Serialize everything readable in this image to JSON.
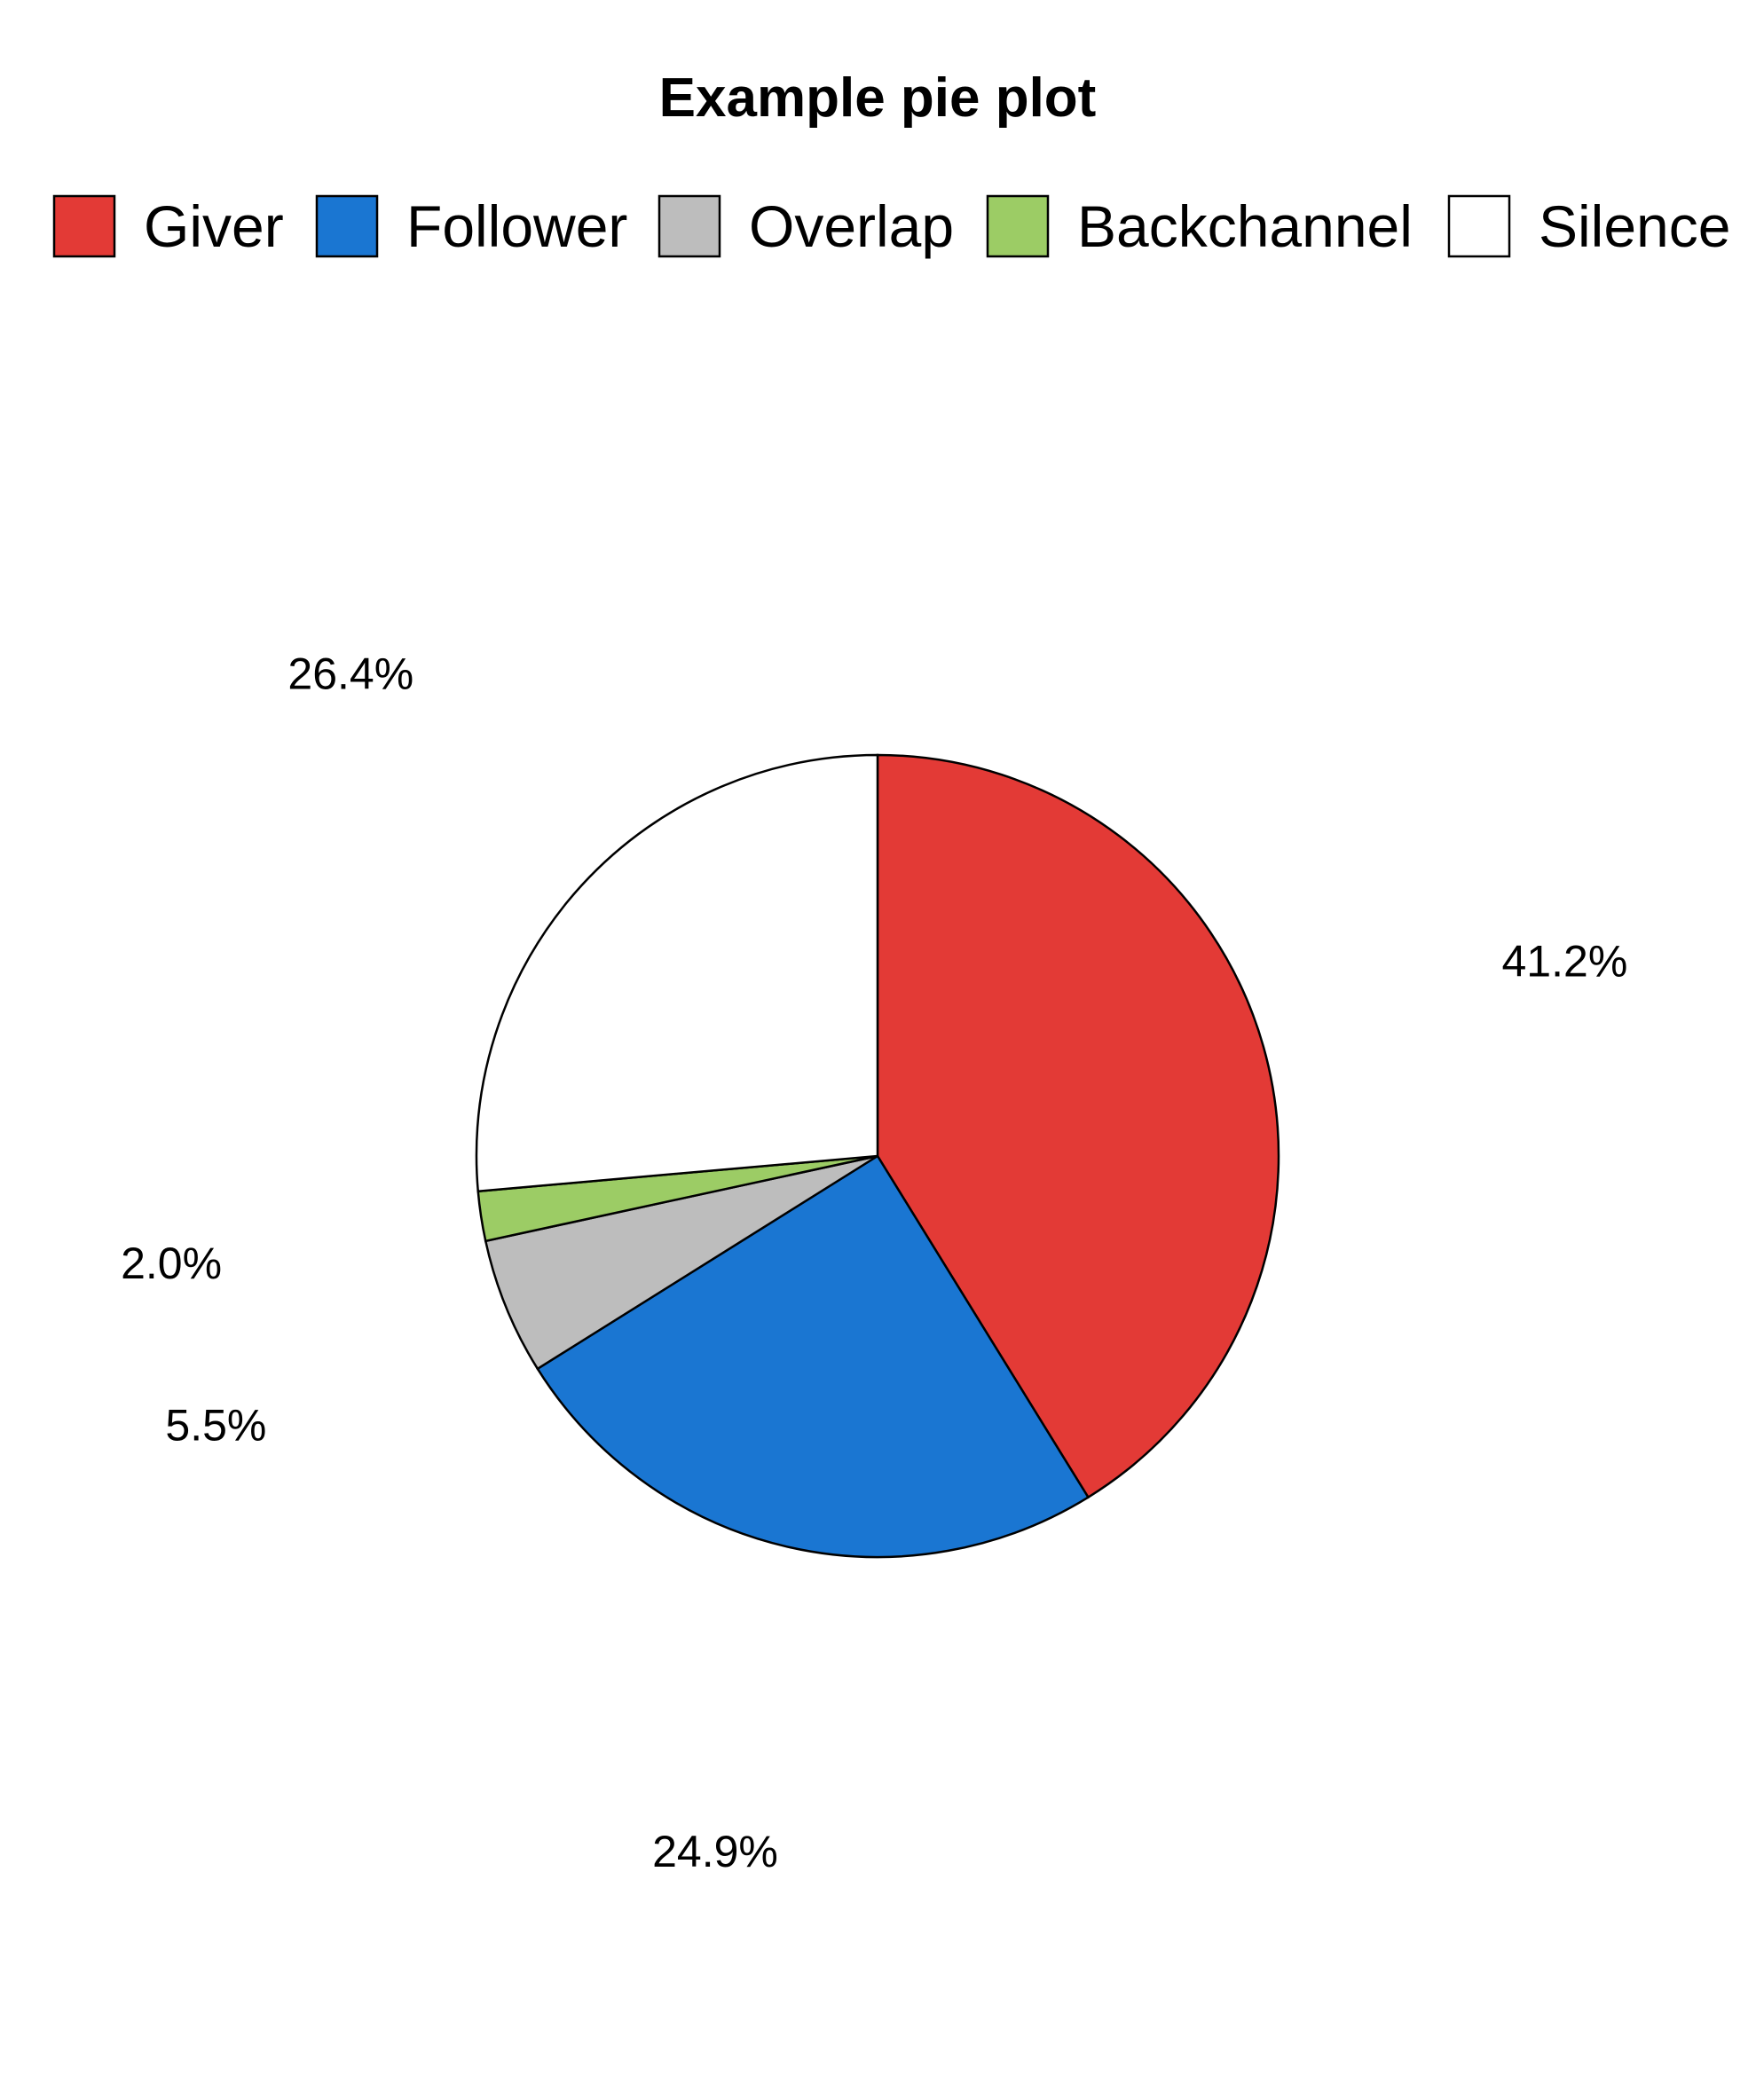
{
  "chart_data": {
    "type": "pie",
    "title": "Example pie plot",
    "categories": [
      "Giver",
      "Follower",
      "Overlap",
      "Backchannel",
      "Silence"
    ],
    "values": [
      41.2,
      24.9,
      5.5,
      2.0,
      26.4
    ],
    "labels": [
      "41.2%",
      "24.9%",
      "5.5%",
      "2.0%",
      "26.4%"
    ],
    "colors": [
      "#e33a36",
      "#1a76d2",
      "#bdbdbd",
      "#9ccc65",
      "#ffffff"
    ],
    "legend": "top",
    "start": "12 o'clock",
    "direction": "clockwise"
  }
}
